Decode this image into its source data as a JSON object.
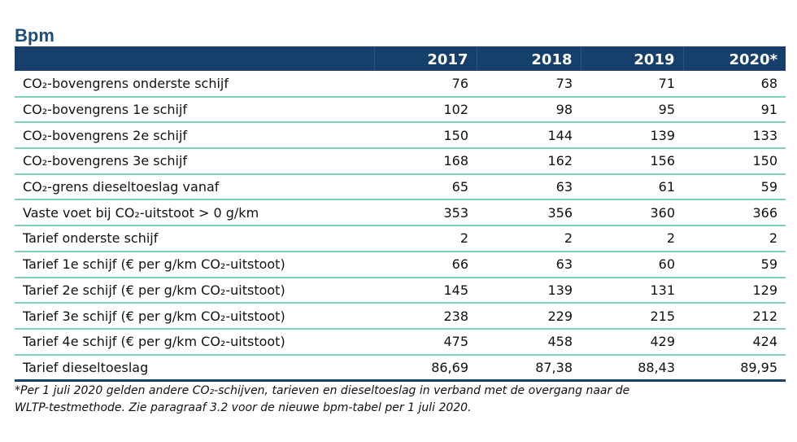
{
  "title": "Bpm",
  "table": {
    "headers": [
      "",
      "2017",
      "2018",
      "2019",
      "2020*"
    ],
    "rows": [
      {
        "label": "CO₂-bovengrens onderste schijf",
        "values": [
          "76",
          "73",
          "71",
          "68"
        ]
      },
      {
        "label": "CO₂-bovengrens 1e schijf",
        "values": [
          "102",
          "98",
          "95",
          "91"
        ]
      },
      {
        "label": "CO₂-bovengrens 2e schijf",
        "values": [
          "150",
          "144",
          "139",
          "133"
        ]
      },
      {
        "label": "CO₂-bovengrens 3e schijf",
        "values": [
          "168",
          "162",
          "156",
          "150"
        ]
      },
      {
        "label": "CO₂-grens dieseltoeslag vanaf",
        "values": [
          "65",
          "63",
          "61",
          "59"
        ]
      },
      {
        "label": "Vaste voet bij CO₂-uitstoot > 0 g/km",
        "values": [
          "353",
          "356",
          "360",
          "366"
        ]
      },
      {
        "label": "Tarief onderste schijf",
        "values": [
          "2",
          "2",
          "2",
          "2"
        ]
      },
      {
        "label": "Tarief 1e schijf (€ per g/km CO₂-uitstoot)",
        "values": [
          "66",
          "63",
          "60",
          "59"
        ]
      },
      {
        "label": "Tarief 2e schijf (€ per g/km CO₂-uitstoot)",
        "values": [
          "145",
          "139",
          "131",
          "129"
        ]
      },
      {
        "label": "Tarief 3e schijf (€ per g/km CO₂-uitstoot)",
        "values": [
          "238",
          "229",
          "215",
          "212"
        ]
      },
      {
        "label": "Tarief 4e schijf (€ per g/km CO₂-uitstoot)",
        "values": [
          "475",
          "458",
          "429",
          "424"
        ]
      },
      {
        "label": "Tarief dieseltoeslag",
        "values": [
          "86,69",
          "87,38",
          "88,43",
          "89,95"
        ]
      }
    ]
  },
  "footnote": {
    "line1": "*Per 1 juli 2020 gelden andere CO₂-schijven, tarieven en dieseltoeslag in verband met de overgang naar de",
    "line2": "WLTP-testmethode. Zie paragraaf 3.2 voor de nieuwe bpm-tabel per 1 juli 2020."
  },
  "colors": {
    "title": "#1f4e79",
    "header_bg": "#173f6b",
    "row_rule": "#7fd1b4"
  }
}
